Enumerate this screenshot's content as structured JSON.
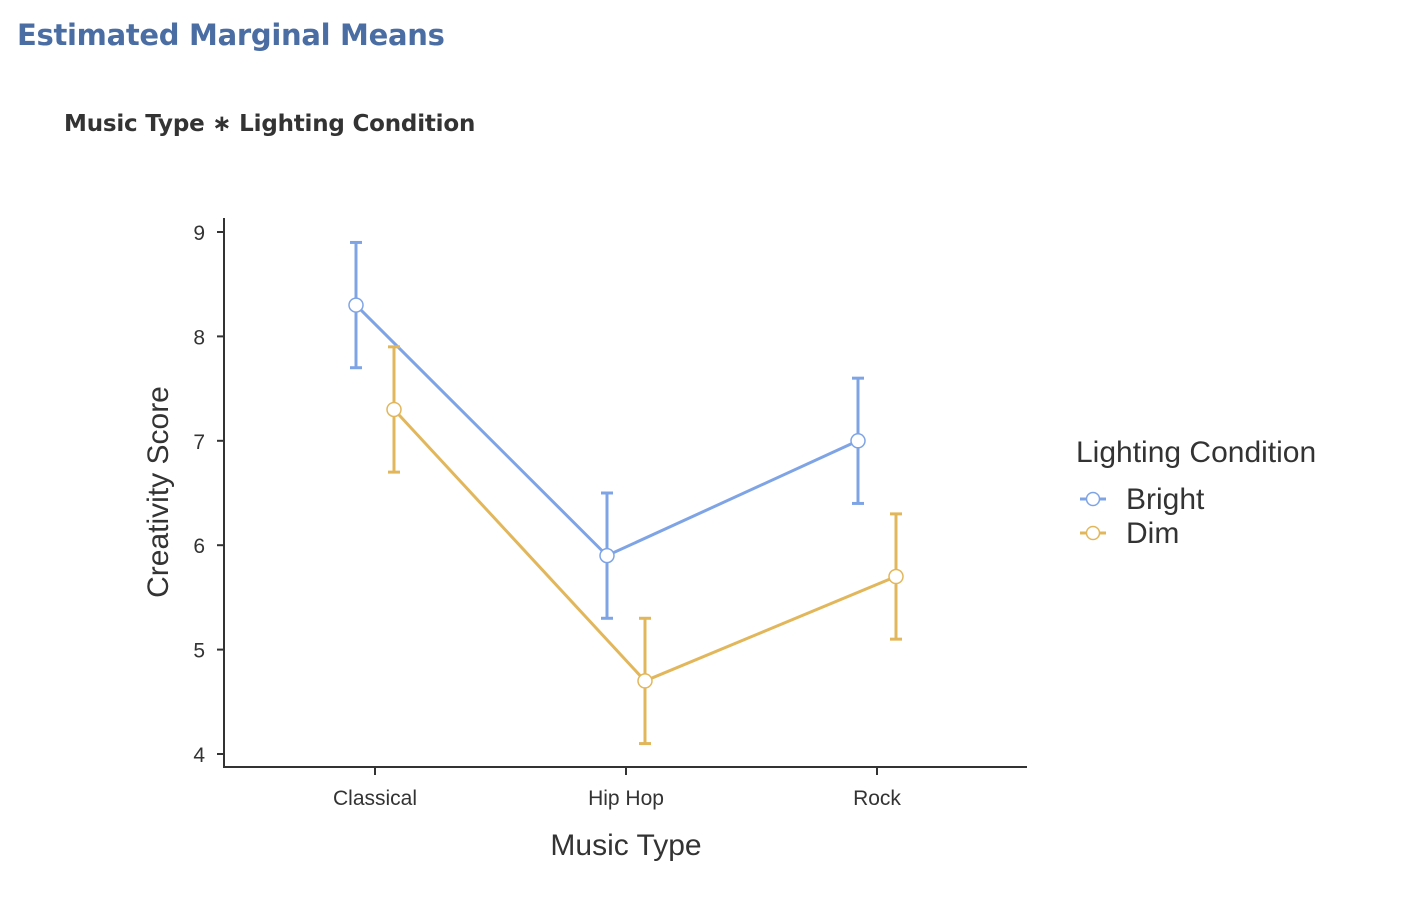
{
  "header": {
    "title": "Estimated Marginal Means",
    "subtitle": "Music Type ∗ Lighting Condition"
  },
  "colors": {
    "heading": "#4a6da3",
    "bright": "#7fa4e6",
    "dim": "#e2b75c",
    "axis": "#333333"
  },
  "chart_data": {
    "type": "line",
    "title": "Music Type ∗ Lighting Condition",
    "xlabel": "Music Type",
    "ylabel": "Creativity Score",
    "categories": [
      "Classical",
      "Hip Hop",
      "Rock"
    ],
    "ylim": [
      4,
      9
    ],
    "yticks": [
      4,
      5,
      6,
      7,
      8,
      9
    ],
    "grid": false,
    "legend": {
      "title": "Lighting Condition",
      "position": "right"
    },
    "series": [
      {
        "name": "Bright",
        "color": "#7fa4e6",
        "values": [
          8.3,
          5.9,
          7.0
        ],
        "ci_lower": [
          7.7,
          5.3,
          6.4
        ],
        "ci_upper": [
          8.9,
          6.5,
          7.6
        ]
      },
      {
        "name": "Dim",
        "color": "#e2b75c",
        "values": [
          7.3,
          4.7,
          5.7
        ],
        "ci_lower": [
          6.7,
          4.1,
          5.1
        ],
        "ci_upper": [
          7.9,
          5.3,
          6.3
        ]
      }
    ]
  }
}
